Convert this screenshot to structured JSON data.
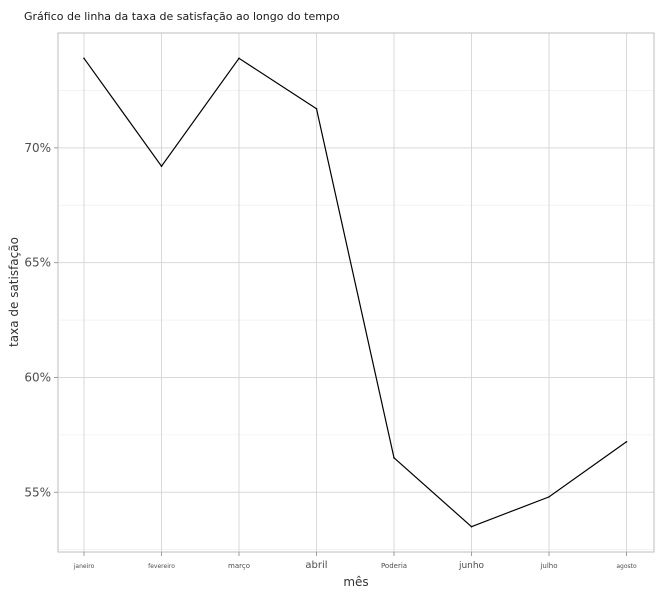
{
  "chart_data": {
    "type": "line",
    "title": "Gráfico de linha da taxa de satisfação ao longo do tempo",
    "xlabel": "mês",
    "ylabel": "taxa de satisfação",
    "categories": [
      "janeiro",
      "fevereiro",
      "março",
      "abril",
      "Poderia",
      "junho",
      "julho",
      "agosto"
    ],
    "category_font_sizes": [
      6,
      6,
      7,
      10,
      7,
      9,
      7,
      6
    ],
    "series": [
      {
        "values": [
          73.9,
          69.2,
          73.9,
          71.7,
          56.5,
          53.5,
          54.8,
          57.2
        ]
      }
    ],
    "yticks": [
      55,
      60,
      65,
      70
    ],
    "ytick_labels": [
      "55%",
      "60%",
      "65%",
      "70%"
    ],
    "ylim": [
      52.4,
      75.0
    ],
    "grid": true,
    "line_color": "#000000"
  }
}
